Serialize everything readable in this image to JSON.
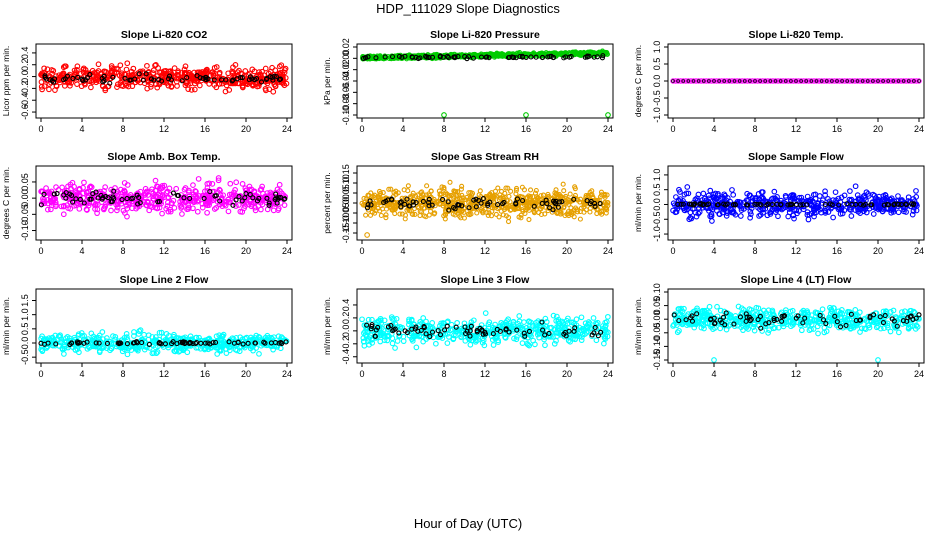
{
  "figure": {
    "title": "HDP_111029  Slope Diagnostics",
    "xlabel": "Hour of Day (UTC)"
  },
  "chart_data": [
    {
      "type": "scatter",
      "title": "Slope Li-820 CO2",
      "ylabel": "Licor ppm per min.",
      "xlim": [
        0,
        24
      ],
      "ylim": [
        -0.65,
        0.5
      ],
      "xticks": [
        0,
        4,
        8,
        12,
        16,
        20,
        24
      ],
      "yticks": [
        -0.6,
        -0.4,
        -0.2,
        0.0,
        0.2,
        0.4
      ],
      "ytick_labels": [
        "-0.6",
        "-0.4",
        "-0.2",
        "0.0",
        "0.2",
        "0.4"
      ],
      "color": "#ff0000",
      "center": -0.02,
      "spread": 0.32,
      "dense": false,
      "mark_center": -0.04,
      "mark_spread": 0.12
    },
    {
      "type": "scatter",
      "title": "Slope Li-820 Pressure",
      "ylabel": "kPa per min.",
      "xlim": [
        0,
        24
      ],
      "ylim": [
        -0.1,
        0.02
      ],
      "xticks": [
        0,
        4,
        8,
        12,
        16,
        20,
        24
      ],
      "yticks": [
        -0.1,
        -0.08,
        -0.06,
        -0.04,
        -0.02,
        0.0,
        0.02
      ],
      "ytick_labels": [
        "-0.10",
        "-0.08",
        "-0.06",
        "-0.04",
        "-0.02",
        "0.00",
        "0.02"
      ],
      "color": "#00cc00",
      "center": 0.005,
      "spread": 0.01,
      "dense": true,
      "trend": true,
      "mark_center": 0.002,
      "mark_spread": 0.004,
      "outliers": [
        [
          8,
          -0.1
        ],
        [
          16,
          -0.1
        ],
        [
          24,
          -0.1
        ]
      ]
    },
    {
      "type": "scatter",
      "title": "Slope Li-820 Temp.",
      "ylabel": "degrees C per min.",
      "xlim": [
        0,
        24
      ],
      "ylim": [
        -1.0,
        1.0
      ],
      "xticks": [
        0,
        4,
        8,
        12,
        16,
        20,
        24
      ],
      "yticks": [
        -1.0,
        -0.5,
        0.0,
        0.5,
        1.0
      ],
      "ytick_labels": [
        "-1.0",
        "-0.5",
        "0.0",
        "0.5",
        "1.0"
      ],
      "color": "#ff00ff",
      "flat": true
    },
    {
      "type": "scatter",
      "title": "Slope Amb. Box Temp.",
      "ylabel": "degrees C per min.",
      "xlim": [
        0,
        24
      ],
      "ylim": [
        -0.12,
        0.09
      ],
      "xticks": [
        0,
        4,
        8,
        12,
        16,
        20,
        24
      ],
      "yticks": [
        -0.1,
        -0.05,
        0.0,
        0.05
      ],
      "ytick_labels": [
        "-0.10",
        "-0.05",
        "0.00",
        "0.05"
      ],
      "color": "#ff00ff",
      "center": 0.0,
      "spread": 0.075,
      "dense": false,
      "mark_center": 0.0,
      "mark_spread": 0.035
    },
    {
      "type": "scatter",
      "title": "Slope Gas Stream RH",
      "ylabel": "percent per min.",
      "xlim": [
        0,
        24
      ],
      "ylim": [
        -0.17,
        0.17
      ],
      "xticks": [
        0,
        4,
        8,
        12,
        16,
        20,
        24
      ],
      "yticks": [
        -0.15,
        -0.1,
        -0.05,
        0.0,
        0.05,
        0.1,
        0.15
      ],
      "ytick_labels": [
        "-0.15",
        "-0.10",
        "-0.05",
        "0.00",
        "0.05",
        "0.10",
        "0.15"
      ],
      "color": "#e6a000",
      "center": 0.0,
      "spread": 0.12,
      "dense": true,
      "mark_center": 0.0,
      "mark_spread": 0.06,
      "outliers": [
        [
          0.5,
          -0.16
        ]
      ]
    },
    {
      "type": "scatter",
      "title": "Slope Sample Flow",
      "ylabel": "ml/min per min.",
      "xlim": [
        0,
        24
      ],
      "ylim": [
        -1.1,
        1.2
      ],
      "xticks": [
        0,
        4,
        8,
        12,
        16,
        20,
        24
      ],
      "yticks": [
        -1.0,
        -0.5,
        0.0,
        0.5,
        1.0
      ],
      "ytick_labels": [
        "-1.0",
        "-0.5",
        "0.0",
        "0.5",
        "1.0"
      ],
      "color": "#0000ff",
      "center": 0.0,
      "spread": 0.7,
      "dense": false,
      "mark_center": 0.0,
      "mark_spread": 0.05
    },
    {
      "type": "scatter",
      "title": "Slope Line 2 Flow",
      "ylabel": "ml/min per min.",
      "xlim": [
        0,
        24
      ],
      "ylim": [
        -0.6,
        1.8
      ],
      "xticks": [
        0,
        4,
        8,
        12,
        16,
        20,
        24
      ],
      "yticks": [
        -0.5,
        0.0,
        0.5,
        1.0,
        1.5
      ],
      "ytick_labels": [
        "-0.5",
        "0.0",
        "0.5",
        "1.0",
        "1.5"
      ],
      "color": "#00ffff",
      "center": 0.0,
      "spread": 0.55,
      "dense": false,
      "mark_center": 0.0,
      "mark_spread": 0.08
    },
    {
      "type": "scatter",
      "title": "Slope Line 3 Flow",
      "ylabel": "ml/min per min.",
      "xlim": [
        0,
        24
      ],
      "ylim": [
        -0.45,
        0.6
      ],
      "xticks": [
        0,
        4,
        8,
        12,
        16,
        20,
        24
      ],
      "yticks": [
        -0.4,
        -0.2,
        0.0,
        0.2,
        0.4
      ],
      "ytick_labels": [
        "-0.4",
        "-0.2",
        "0.0",
        "0.2",
        "0.4"
      ],
      "color": "#00ffff",
      "center": 0.0,
      "spread": 0.35,
      "dense": false,
      "mark_center": 0.0,
      "mark_spread": 0.2
    },
    {
      "type": "scatter",
      "title": "Slope Line 4 (LT) Flow",
      "ylabel": "ml/min per min.",
      "xlim": [
        0,
        24
      ],
      "ylim": [
        -0.15,
        0.1
      ],
      "xticks": [
        0,
        4,
        8,
        12,
        16,
        20,
        24
      ],
      "yticks": [
        -0.15,
        -0.1,
        -0.05,
        0.0,
        0.05,
        0.1
      ],
      "ytick_labels": [
        "-0.15",
        "-0.10",
        "-0.05",
        "0.00",
        "0.05",
        "0.10"
      ],
      "color": "#00ffff",
      "center": 0.0,
      "spread": 0.07,
      "dense": false,
      "mark_center": 0.0,
      "mark_spread": 0.04,
      "outliers": [
        [
          4,
          -0.15
        ],
        [
          20,
          -0.15
        ]
      ]
    }
  ]
}
